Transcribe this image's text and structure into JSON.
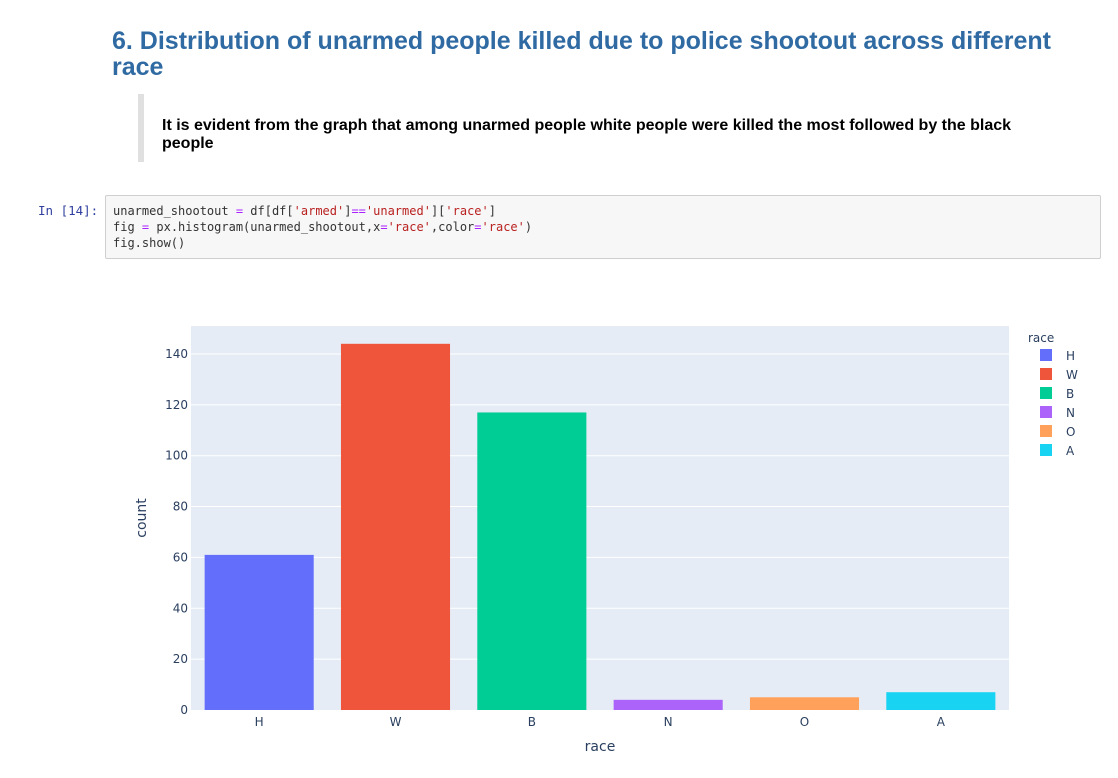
{
  "heading": "6. Distribution of unarmed people killed due to police shootout across different race",
  "blockquote": "It is evident from the graph that among unarmed people white people were killed the most followed by the black people",
  "cell": {
    "prompt": "In [14]:",
    "code_lines": [
      [
        {
          "t": "unarmed_shootout ",
          "c": ""
        },
        {
          "t": "=",
          "c": "op"
        },
        {
          "t": " df[df[",
          "c": ""
        },
        {
          "t": "'armed'",
          "c": "str"
        },
        {
          "t": "]",
          "c": ""
        },
        {
          "t": "==",
          "c": "op"
        },
        {
          "t": "'unarmed'",
          "c": "str"
        },
        {
          "t": "][",
          "c": ""
        },
        {
          "t": "'race'",
          "c": "str"
        },
        {
          "t": "]",
          "c": ""
        }
      ],
      [
        {
          "t": "fig ",
          "c": ""
        },
        {
          "t": "=",
          "c": "op"
        },
        {
          "t": " px.histogram(unarmed_shootout,x",
          "c": ""
        },
        {
          "t": "=",
          "c": "op"
        },
        {
          "t": "'race'",
          "c": "str"
        },
        {
          "t": ",color",
          "c": ""
        },
        {
          "t": "=",
          "c": "op"
        },
        {
          "t": "'race'",
          "c": "str"
        },
        {
          "t": ")",
          "c": ""
        }
      ],
      [
        {
          "t": "fig.show()",
          "c": ""
        }
      ]
    ]
  },
  "colors": {
    "heading": "#2f6aa3",
    "prompt": "#303f9f",
    "plot_bg": "#e5ecf6",
    "string": "#ba2121",
    "operator": "#aa22ff"
  },
  "chart_data": {
    "type": "bar",
    "title": "",
    "xlabel": "race",
    "ylabel": "count",
    "categories": [
      "H",
      "W",
      "B",
      "N",
      "O",
      "A"
    ],
    "values": [
      61,
      144,
      117,
      4,
      5,
      7
    ],
    "colors": [
      "#636efa",
      "#ef553b",
      "#00cc96",
      "#ab63fa",
      "#ffa15a",
      "#19d3f3"
    ],
    "ylim": [
      0,
      151
    ],
    "yticks": [
      0,
      20,
      40,
      60,
      80,
      100,
      120,
      140
    ],
    "grid": true,
    "legend": {
      "title": "race",
      "placement": "top-right",
      "entries": [
        "H",
        "W",
        "B",
        "N",
        "O",
        "A"
      ]
    }
  }
}
